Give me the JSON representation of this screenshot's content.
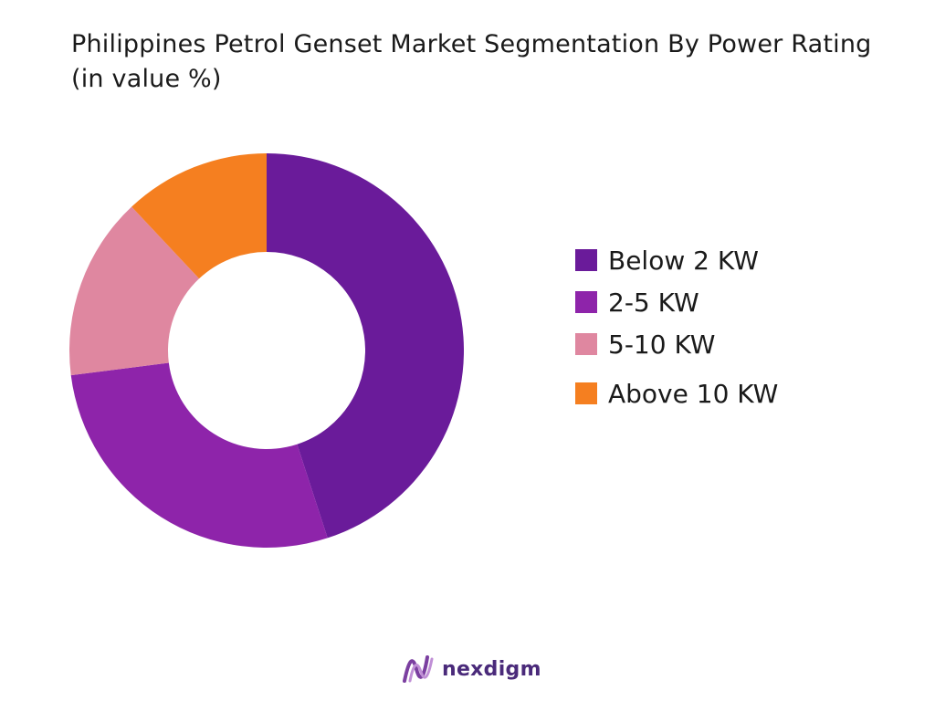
{
  "colors": {
    "below_2kw": "#6a1b9a",
    "kw_2_5": "#8e24aa",
    "kw_5_10": "#df87a0",
    "above_10kw": "#f57f20",
    "brand": "#4a2a7a"
  },
  "brand": {
    "name": "nexdigm",
    "logo_icon": "nexdigm-wave-logo"
  },
  "chart_data": {
    "type": "pie",
    "variant": "donut",
    "title": "Philippines Petrol Genset Market Segmentation By Power Rating (in value %)",
    "categories": [
      "Below 2 KW",
      "2-5 KW",
      "5-10 KW",
      "Above 10 KW"
    ],
    "values": [
      45,
      28,
      15,
      12
    ],
    "unit": "%",
    "legend": "right"
  }
}
